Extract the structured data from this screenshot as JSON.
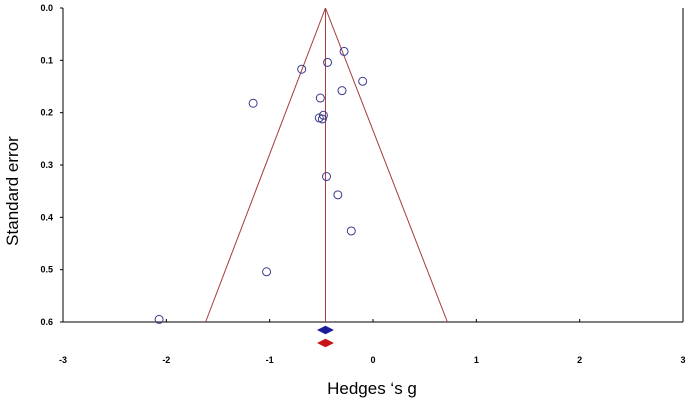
{
  "chart_data": {
    "type": "scatter",
    "subtype": "funnel-plot",
    "title": "",
    "xlabel": "Hedges ‘s g",
    "ylabel": "Standard error",
    "xlim": [
      -3,
      3
    ],
    "ylim": [
      0,
      0.6
    ],
    "y_inverted": true,
    "x_ticks": [
      -3,
      -2,
      -1,
      0,
      1,
      2,
      3
    ],
    "y_ticks": [
      0.0,
      0.1,
      0.2,
      0.3,
      0.4,
      0.5,
      0.6
    ],
    "x_tick_labels": [
      "-3",
      "-2",
      "-1",
      "0",
      "1",
      "2",
      "3"
    ],
    "y_tick_labels": [
      "0.0",
      "0.1",
      "0.2",
      "0.3",
      "0.4",
      "0.5",
      "0.6"
    ],
    "grid": false,
    "legend": "none",
    "points": [
      {
        "x": -0.28,
        "y": 0.083
      },
      {
        "x": -0.44,
        "y": 0.104
      },
      {
        "x": -0.69,
        "y": 0.117
      },
      {
        "x": -0.1,
        "y": 0.14
      },
      {
        "x": -0.3,
        "y": 0.158
      },
      {
        "x": -0.51,
        "y": 0.172
      },
      {
        "x": -1.16,
        "y": 0.182
      },
      {
        "x": -0.48,
        "y": 0.205
      },
      {
        "x": -0.52,
        "y": 0.21
      },
      {
        "x": -0.49,
        "y": 0.212
      },
      {
        "x": -0.45,
        "y": 0.322
      },
      {
        "x": -0.34,
        "y": 0.357
      },
      {
        "x": -0.21,
        "y": 0.426
      },
      {
        "x": -1.03,
        "y": 0.504
      },
      {
        "x": -2.07,
        "y": 0.595
      }
    ],
    "mean_effect": -0.46,
    "funnel": {
      "apex": {
        "x": -0.46,
        "y": 0.0
      },
      "base_left": {
        "x": -1.62,
        "y": 0.6
      },
      "base_right": {
        "x": 0.72,
        "y": 0.6
      }
    },
    "summary_diamonds": [
      {
        "x": -0.46,
        "color": "#1a1a9c"
      },
      {
        "x": -0.46,
        "color": "#c81414"
      }
    ],
    "colors": {
      "marker": "#3a3a8c",
      "funnel_line": "#a43a3a",
      "axis": "#000000"
    }
  }
}
